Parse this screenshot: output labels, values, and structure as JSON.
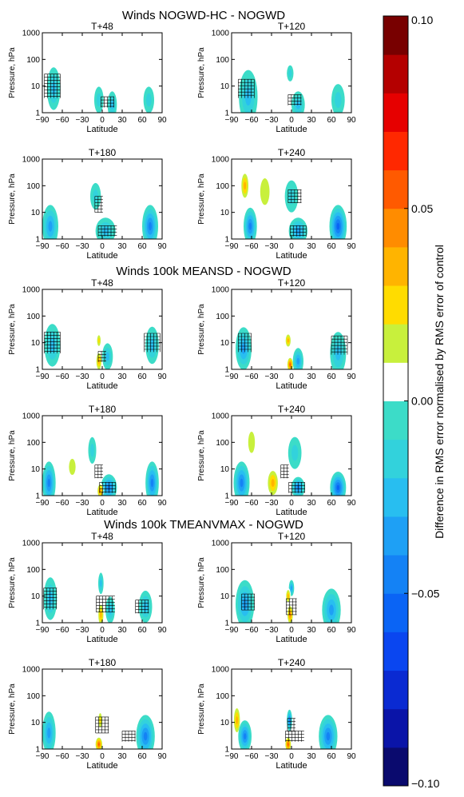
{
  "figure": {
    "colorbar": {
      "label": "Difference in RMS error normalised by RMS error of control",
      "ticks": [
        "0.10",
        "0.05",
        "0.00",
        "−0.05",
        "−0.10"
      ],
      "tick_values": [
        0.1,
        0.05,
        0.0,
        -0.05,
        -0.1
      ],
      "range": [
        -0.1,
        0.1
      ],
      "colors": [
        "#0a0a6e",
        "#0a14a8",
        "#0a2ad2",
        "#0a46f0",
        "#0a64f5",
        "#1482f5",
        "#1ea0f5",
        "#28bef0",
        "#32d2dc",
        "#3cdcc8",
        "#ffffff",
        "#c8f03c",
        "#ffdc00",
        "#ffb400",
        "#ff8c00",
        "#ff5a00",
        "#ff2800",
        "#e60000",
        "#b40000",
        "#780000"
      ]
    },
    "groups": [
      {
        "title": "Winds NOGWD-HC - NOGWD"
      },
      {
        "title": "Winds 100k MEANSD - NOGWD"
      },
      {
        "title": "Winds 100k TMEANVMAX - NOGWD"
      }
    ]
  },
  "chart_data": {
    "type": "heatmap",
    "xlabel": "Latitude",
    "ylabel": "Pressure, hPa",
    "xlim": [
      -90,
      90
    ],
    "xticks": [
      "−90",
      "−60",
      "−30",
      "0",
      "30",
      "60",
      "90"
    ],
    "xtick_values": [
      -90,
      -60,
      -30,
      0,
      30,
      60,
      90
    ],
    "ylim": [
      1000,
      1
    ],
    "yscale": "log",
    "yticks": [
      "1",
      "10",
      "100",
      "1000"
    ],
    "ytick_values": [
      1,
      10,
      100,
      1000
    ],
    "panels": [
      {
        "group": 0,
        "title": "T+48",
        "blobs": [
          {
            "lat": -73,
            "p": 8,
            "v": -0.025,
            "r": 10,
            "h": 0.8
          },
          {
            "lat": -5,
            "p": 3,
            "v": -0.02,
            "r": 7,
            "h": 0.5
          },
          {
            "lat": 15,
            "p": 2,
            "v": -0.025,
            "r": 7,
            "h": 0.5
          },
          {
            "lat": 70,
            "p": 3,
            "v": -0.02,
            "r": 8,
            "h": 0.5
          }
        ],
        "hatch": [
          {
            "lat": -75,
            "p": 10,
            "w": 12,
            "h": 0.9
          },
          {
            "lat": 8,
            "p": 2.5,
            "w": 10,
            "h": 0.4
          }
        ]
      },
      {
        "group": 0,
        "title": "T+120",
        "blobs": [
          {
            "lat": -65,
            "p": 4,
            "v": -0.025,
            "r": 14,
            "h": 1.0
          },
          {
            "lat": 10,
            "p": 2,
            "v": -0.025,
            "r": 10,
            "h": 0.5
          },
          {
            "lat": 70,
            "p": 3,
            "v": -0.02,
            "r": 10,
            "h": 0.6
          },
          {
            "lat": -2,
            "p": 30,
            "v": -0.015,
            "r": 5,
            "h": 0.3
          }
        ],
        "hatch": [
          {
            "lat": -68,
            "p": 8,
            "w": 12,
            "h": 0.7
          },
          {
            "lat": 5,
            "p": 3,
            "w": 10,
            "h": 0.4
          }
        ]
      },
      {
        "group": 0,
        "title": "T+180",
        "blobs": [
          {
            "lat": -78,
            "p": 3,
            "v": -0.04,
            "r": 12,
            "h": 0.8
          },
          {
            "lat": 5,
            "p": 2,
            "v": -0.03,
            "r": 15,
            "h": 0.5
          },
          {
            "lat": 72,
            "p": 3,
            "v": -0.045,
            "r": 12,
            "h": 0.8
          },
          {
            "lat": -45,
            "p": 12,
            "v": 0.01,
            "r": 8,
            "h": 0.5
          },
          {
            "lat": -10,
            "p": 40,
            "v": -0.015,
            "r": 8,
            "h": 0.5
          }
        ],
        "hatch": [
          {
            "lat": 8,
            "p": 2,
            "w": 14,
            "h": 0.4
          },
          {
            "lat": -5,
            "p": 20,
            "w": 6,
            "h": 0.6
          }
        ]
      },
      {
        "group": 0,
        "title": "T+240",
        "blobs": [
          {
            "lat": -62,
            "p": 3,
            "v": -0.05,
            "r": 10,
            "h": 0.7
          },
          {
            "lat": 70,
            "p": 3,
            "v": -0.06,
            "r": 13,
            "h": 0.8
          },
          {
            "lat": -70,
            "p": 100,
            "v": 0.04,
            "r": 7,
            "h": 0.6
          },
          {
            "lat": 10,
            "p": 2,
            "v": -0.035,
            "r": 14,
            "h": 0.5
          },
          {
            "lat": 0,
            "p": 40,
            "v": -0.02,
            "r": 10,
            "h": 0.6
          },
          {
            "lat": -40,
            "p": 60,
            "v": 0.015,
            "r": 14,
            "h": 1.0
          },
          {
            "lat": 45,
            "p": 150,
            "v": 0.012,
            "r": 10,
            "h": 0.8
          }
        ],
        "hatch": [
          {
            "lat": 5,
            "p": 40,
            "w": 10,
            "h": 0.5
          },
          {
            "lat": 10,
            "p": 2,
            "w": 12,
            "h": 0.4
          }
        ]
      },
      {
        "group": 1,
        "title": "T+48",
        "blobs": [
          {
            "lat": -75,
            "p": 8,
            "v": -0.03,
            "r": 12,
            "h": 0.8
          },
          {
            "lat": -5,
            "p": 2,
            "v": 0.035,
            "r": 5,
            "h": 0.4
          },
          {
            "lat": 8,
            "p": 3,
            "v": -0.03,
            "r": 8,
            "h": 0.5
          },
          {
            "lat": 75,
            "p": 8,
            "v": -0.03,
            "r": 10,
            "h": 0.7
          },
          {
            "lat": -5,
            "p": 12,
            "v": 0.03,
            "r": 4,
            "h": 0.3
          }
        ],
        "hatch": [
          {
            "lat": -75,
            "p": 10,
            "w": 12,
            "h": 0.8
          },
          {
            "lat": 75,
            "p": 10,
            "w": 12,
            "h": 0.7
          },
          {
            "lat": 0,
            "p": 3,
            "w": 6,
            "h": 0.4
          }
        ]
      },
      {
        "group": 1,
        "title": "T+120",
        "blobs": [
          {
            "lat": -72,
            "p": 6,
            "v": -0.035,
            "r": 12,
            "h": 0.8
          },
          {
            "lat": -2,
            "p": 1.5,
            "v": 0.06,
            "r": 5,
            "h": 0.3
          },
          {
            "lat": 10,
            "p": 2,
            "v": -0.04,
            "r": 8,
            "h": 0.5
          },
          {
            "lat": 70,
            "p": 4,
            "v": -0.03,
            "r": 12,
            "h": 0.8
          },
          {
            "lat": -5,
            "p": 12,
            "v": 0.035,
            "r": 5,
            "h": 0.3
          }
        ],
        "hatch": [
          {
            "lat": -70,
            "p": 10,
            "w": 10,
            "h": 0.7
          },
          {
            "lat": 72,
            "p": 8,
            "w": 12,
            "h": 0.7
          }
        ]
      },
      {
        "group": 1,
        "title": "T+180",
        "blobs": [
          {
            "lat": -80,
            "p": 3,
            "v": -0.05,
            "r": 10,
            "h": 0.8
          },
          {
            "lat": 10,
            "p": 2,
            "v": -0.05,
            "r": 12,
            "h": 0.5
          },
          {
            "lat": 75,
            "p": 3,
            "v": -0.05,
            "r": 10,
            "h": 0.8
          },
          {
            "lat": -3,
            "p": 1.5,
            "v": 0.05,
            "r": 5,
            "h": 0.3
          },
          {
            "lat": -45,
            "p": 12,
            "v": 0.015,
            "r": 10,
            "h": 0.6
          },
          {
            "lat": -40,
            "p": 200,
            "v": 0.012,
            "r": 14,
            "h": 0.8
          },
          {
            "lat": -15,
            "p": 50,
            "v": -0.02,
            "r": 6,
            "h": 0.5
          }
        ],
        "hatch": [
          {
            "lat": 8,
            "p": 2,
            "w": 12,
            "h": 0.4
          },
          {
            "lat": -5,
            "p": 8,
            "w": 6,
            "h": 0.5
          }
        ]
      },
      {
        "group": 1,
        "title": "T+240",
        "blobs": [
          {
            "lat": -75,
            "p": 3,
            "v": -0.05,
            "r": 12,
            "h": 0.8
          },
          {
            "lat": -28,
            "p": 3,
            "v": 0.04,
            "r": 10,
            "h": 0.6
          },
          {
            "lat": 70,
            "p": 2,
            "v": -0.06,
            "r": 12,
            "h": 0.6
          },
          {
            "lat": 10,
            "p": 2,
            "v": -0.05,
            "r": 10,
            "h": 0.4
          },
          {
            "lat": -60,
            "p": 100,
            "v": 0.015,
            "r": 10,
            "h": 0.8
          },
          {
            "lat": 5,
            "p": 40,
            "v": -0.02,
            "r": 10,
            "h": 0.6
          }
        ],
        "hatch": [
          {
            "lat": 8,
            "p": 2,
            "w": 12,
            "h": 0.4
          },
          {
            "lat": -10,
            "p": 8,
            "w": 6,
            "h": 0.5
          }
        ]
      },
      {
        "group": 2,
        "title": "T+48",
        "blobs": [
          {
            "lat": -78,
            "p": 8,
            "v": -0.03,
            "r": 10,
            "h": 0.8
          },
          {
            "lat": -2,
            "p": 2,
            "v": 0.04,
            "r": 5,
            "h": 0.5
          },
          {
            "lat": 12,
            "p": 3,
            "v": -0.03,
            "r": 7,
            "h": 0.5
          },
          {
            "lat": 65,
            "p": 4,
            "v": -0.025,
            "r": 10,
            "h": 0.6
          },
          {
            "lat": -2,
            "p": 30,
            "v": -0.025,
            "r": 4,
            "h": 0.4
          }
        ],
        "hatch": [
          {
            "lat": -78,
            "p": 8,
            "w": 10,
            "h": 0.8
          },
          {
            "lat": 5,
            "p": 5,
            "w": 14,
            "h": 0.6
          },
          {
            "lat": 60,
            "p": 4,
            "w": 10,
            "h": 0.5
          }
        ]
      },
      {
        "group": 2,
        "title": "T+120",
        "blobs": [
          {
            "lat": -70,
            "p": 5,
            "v": -0.04,
            "r": 14,
            "h": 0.9
          },
          {
            "lat": -2,
            "p": 2,
            "v": 0.05,
            "r": 5,
            "h": 0.4
          },
          {
            "lat": 0,
            "p": 20,
            "v": -0.04,
            "r": 4,
            "h": 0.3
          },
          {
            "lat": 60,
            "p": 3,
            "v": -0.035,
            "r": 14,
            "h": 0.8
          },
          {
            "lat": -5,
            "p": 10,
            "v": 0.04,
            "r": 4,
            "h": 0.3
          }
        ],
        "hatch": [
          {
            "lat": -65,
            "p": 6,
            "w": 10,
            "h": 0.6
          },
          {
            "lat": 0,
            "p": 4,
            "w": 8,
            "h": 0.6
          }
        ]
      },
      {
        "group": 2,
        "title": "T+180",
        "blobs": [
          {
            "lat": -80,
            "p": 4,
            "v": -0.04,
            "r": 10,
            "h": 0.8
          },
          {
            "lat": -5,
            "p": 1.5,
            "v": 0.06,
            "r": 6,
            "h": 0.3
          },
          {
            "lat": 65,
            "p": 3,
            "v": -0.05,
            "r": 14,
            "h": 0.8
          },
          {
            "lat": -3,
            "p": 12,
            "v": 0.03,
            "r": 4,
            "h": 0.4
          },
          {
            "lat": 88,
            "p": 400,
            "v": 0.012,
            "r": 4,
            "h": 0.5
          },
          {
            "lat": -40,
            "p": 200,
            "v": 0.012,
            "r": 12,
            "h": 0.8
          }
        ],
        "hatch": [
          {
            "lat": 0,
            "p": 8,
            "w": 10,
            "h": 0.6
          },
          {
            "lat": 40,
            "p": 3,
            "w": 10,
            "h": 0.4
          }
        ]
      },
      {
        "group": 2,
        "title": "T+240",
        "blobs": [
          {
            "lat": -82,
            "p": 12,
            "v": 0.04,
            "r": 6,
            "h": 0.6
          },
          {
            "lat": -70,
            "p": 3,
            "v": -0.05,
            "r": 10,
            "h": 0.6
          },
          {
            "lat": -5,
            "p": 1.5,
            "v": 0.06,
            "r": 5,
            "h": 0.3
          },
          {
            "lat": 55,
            "p": 3,
            "v": -0.05,
            "r": 14,
            "h": 0.8
          },
          {
            "lat": -3,
            "p": 12,
            "v": -0.05,
            "r": 4,
            "h": 0.4
          },
          {
            "lat": -40,
            "p": 200,
            "v": 0.012,
            "r": 14,
            "h": 0.8
          },
          {
            "lat": 60,
            "p": 150,
            "v": 0.01,
            "r": 12,
            "h": 0.8
          }
        ],
        "hatch": [
          {
            "lat": 5,
            "p": 3,
            "w": 14,
            "h": 0.4
          },
          {
            "lat": 0,
            "p": 8,
            "w": 6,
            "h": 0.5
          }
        ]
      }
    ]
  }
}
